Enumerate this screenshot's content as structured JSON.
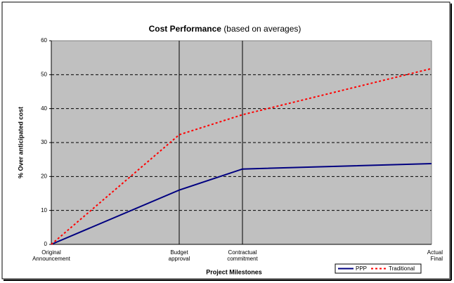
{
  "chart_data": {
    "type": "line",
    "title": "Cost Performance",
    "subtitle": "(based on averages)",
    "x_label": "Project Milestones",
    "y_label": "% Over anticipated cost",
    "categories": [
      "Original\nAnnouncement",
      "Budget\napproval",
      "Contractual\ncommitment",
      "Actual\nFinal"
    ],
    "series": [
      {
        "name": "PPP",
        "color": "#000080",
        "dashed": false,
        "values": [
          0,
          16,
          22.2,
          23.8
        ]
      },
      {
        "name": "Traditional",
        "color": "#ff0000",
        "dashed": true,
        "values": [
          0,
          32.3,
          38.2,
          51.8
        ]
      }
    ],
    "ylim": [
      0,
      60
    ],
    "yticks": [
      0,
      10,
      20,
      30,
      40,
      50,
      60
    ],
    "grid": true,
    "legend": "bottom-right"
  }
}
